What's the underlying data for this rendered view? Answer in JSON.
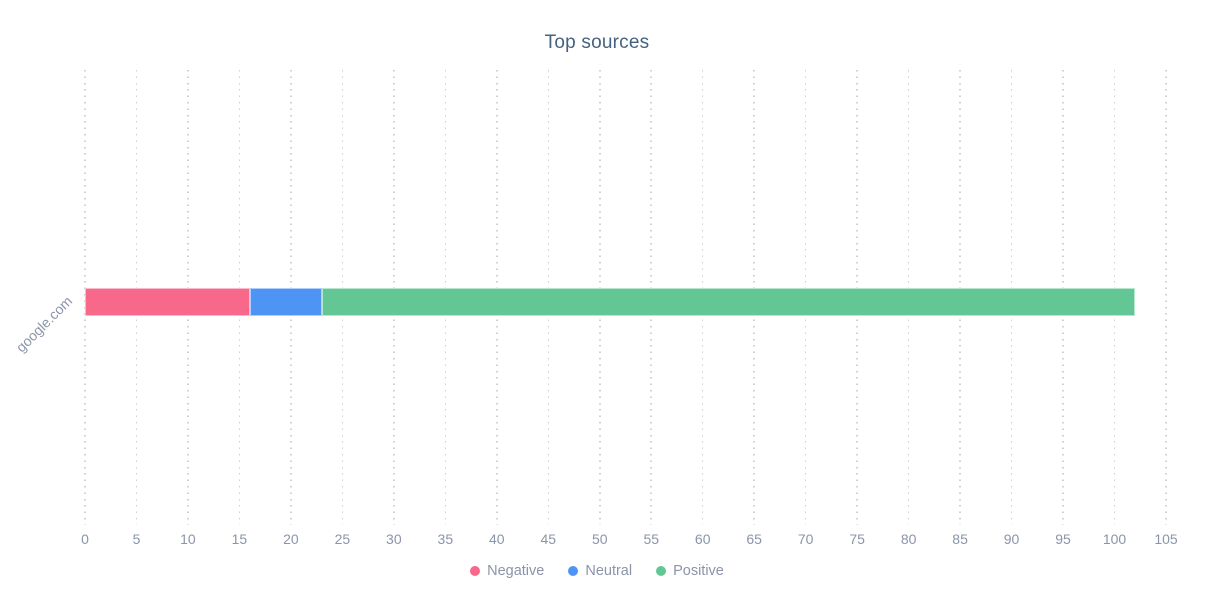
{
  "chart_data": {
    "type": "bar",
    "orientation": "horizontal",
    "stacked": true,
    "title": "Top sources",
    "categories": [
      "google.com"
    ],
    "series": [
      {
        "name": "Negative",
        "color": "#f8688a",
        "values": [
          16
        ]
      },
      {
        "name": "Neutral",
        "color": "#4d94f5",
        "values": [
          7
        ]
      },
      {
        "name": "Positive",
        "color": "#63c795",
        "values": [
          79
        ]
      }
    ],
    "xlim": [
      0,
      105
    ],
    "xticks": [
      0,
      5,
      10,
      15,
      20,
      25,
      30,
      35,
      40,
      45,
      50,
      55,
      60,
      65,
      70,
      75,
      80,
      85,
      90,
      95,
      100,
      105
    ],
    "grid": "vertical-dotted",
    "legend_position": "bottom",
    "style": {
      "title_color": "#47627f",
      "axis_text_color": "#8b94a9",
      "gridline_color": "#d0d0d0",
      "background": "#ffffff"
    }
  }
}
